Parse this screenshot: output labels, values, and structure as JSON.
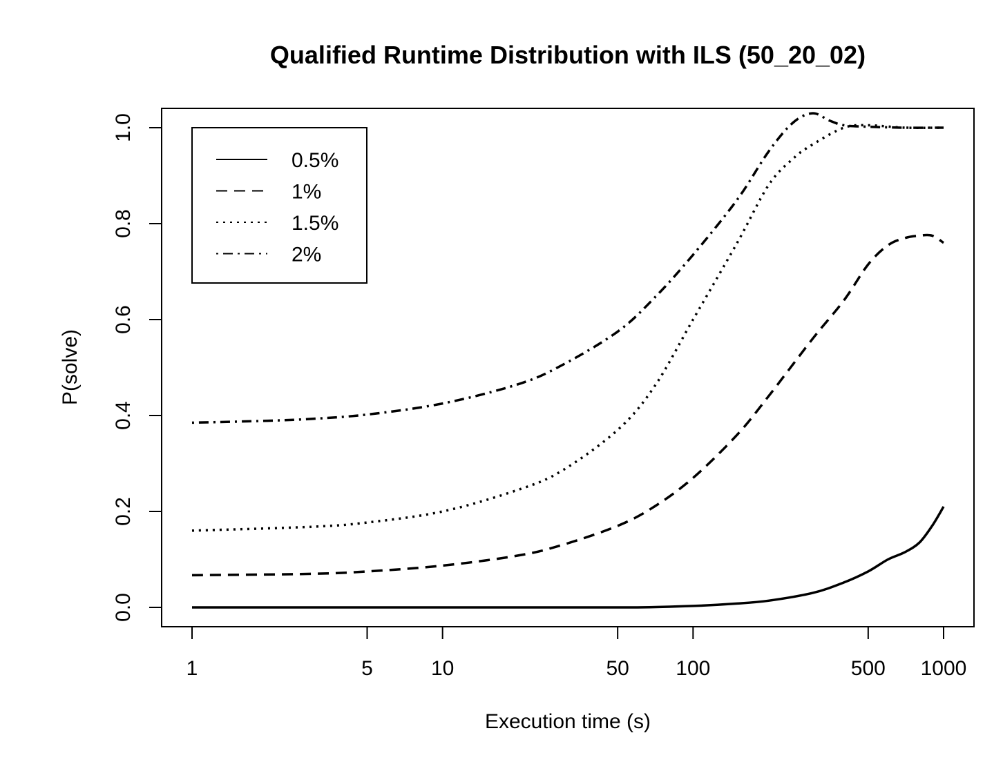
{
  "chart_data": {
    "type": "line",
    "title": "Qualified Runtime Distribution with ILS (50_20_02)",
    "xlabel": "Execution time (s)",
    "ylabel": "P(solve)",
    "x_scale": "log",
    "xlim": [
      1,
      1000
    ],
    "ylim": [
      0,
      1
    ],
    "x_ticks": [
      1,
      5,
      10,
      50,
      100,
      500,
      1000
    ],
    "x_tick_labels": [
      "1",
      "5",
      "10",
      "50",
      "100",
      "500",
      "1000"
    ],
    "y_ticks": [
      0,
      0.2,
      0.4,
      0.6,
      0.8,
      1
    ],
    "y_tick_labels": [
      "0.0",
      "0.2",
      "0.4",
      "0.6",
      "0.8",
      "1.0"
    ],
    "grid": false,
    "legend_position": "top-left",
    "series": [
      {
        "name": "0.5%",
        "line_style": "solid",
        "x": [
          1,
          5,
          10,
          30,
          60,
          100,
          150,
          200,
          300,
          400,
          500,
          600,
          700,
          800,
          900,
          1000
        ],
        "y": [
          0,
          0,
          0,
          0,
          0,
          0.003,
          0.008,
          0.014,
          0.03,
          0.052,
          0.075,
          0.1,
          0.115,
          0.135,
          0.17,
          0.21
        ]
      },
      {
        "name": "1%",
        "line_style": "dashed",
        "x": [
          1,
          3,
          5,
          10,
          20,
          30,
          50,
          70,
          100,
          150,
          200,
          300,
          400,
          500,
          600,
          700,
          800,
          900,
          1000
        ],
        "y": [
          0.067,
          0.07,
          0.075,
          0.087,
          0.108,
          0.13,
          0.17,
          0.21,
          0.27,
          0.36,
          0.44,
          0.56,
          0.64,
          0.715,
          0.755,
          0.77,
          0.775,
          0.775,
          0.76
        ]
      },
      {
        "name": "1.5%",
        "line_style": "dotted",
        "x": [
          1,
          3,
          5,
          10,
          20,
          30,
          50,
          70,
          100,
          150,
          200,
          250,
          300,
          400,
          500,
          700,
          1000
        ],
        "y": [
          0.16,
          0.168,
          0.177,
          0.2,
          0.245,
          0.285,
          0.37,
          0.46,
          0.6,
          0.76,
          0.88,
          0.935,
          0.965,
          1.0,
          1.005,
          1.0,
          1.0
        ]
      },
      {
        "name": "2%",
        "line_style": "dot-dash",
        "x": [
          1,
          2,
          3,
          5,
          10,
          20,
          30,
          50,
          70,
          100,
          150,
          200,
          250,
          300,
          350,
          400,
          500,
          700,
          1000
        ],
        "y": [
          0.385,
          0.389,
          0.393,
          0.402,
          0.425,
          0.465,
          0.505,
          0.575,
          0.645,
          0.735,
          0.85,
          0.95,
          1.01,
          1.03,
          1.015,
          1.005,
          1.002,
          1.0,
          1.0
        ]
      }
    ]
  }
}
